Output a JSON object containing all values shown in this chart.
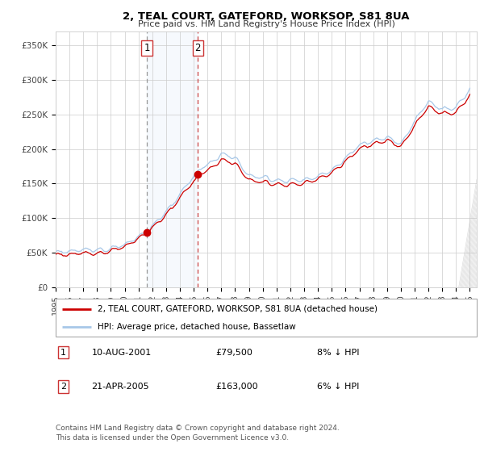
{
  "title": "2, TEAL COURT, GATEFORD, WORKSOP, S81 8UA",
  "subtitle": "Price paid vs. HM Land Registry's House Price Index (HPI)",
  "ylabel_ticks": [
    "£0",
    "£50K",
    "£100K",
    "£150K",
    "£200K",
    "£250K",
    "£300K",
    "£350K"
  ],
  "ylim": [
    0,
    370000
  ],
  "xlim_start": 1995.0,
  "xlim_end": 2025.5,
  "transaction1": {
    "date_label": "10-AUG-2001",
    "year": 2001.614,
    "price": 79500,
    "label": "1",
    "hpi_pct": "8% ↓ HPI"
  },
  "transaction2": {
    "date_label": "21-APR-2005",
    "year": 2005.3,
    "price": 163000,
    "label": "2",
    "hpi_pct": "6% ↓ HPI"
  },
  "legend_line1": "2, TEAL COURT, GATEFORD, WORKSOP, S81 8UA (detached house)",
  "legend_line2": "HPI: Average price, detached house, Bassetlaw",
  "footer": "Contains HM Land Registry data © Crown copyright and database right 2024.\nThis data is licensed under the Open Government Licence v3.0.",
  "hpi_color": "#a8c8e8",
  "price_color": "#cc0000",
  "shade_color": "#d8e8f8",
  "grid_color": "#cccccc",
  "background_color": "#ffffff",
  "tick_label_color": "#444444",
  "dashed_line1_color": "#999999",
  "dashed_line2_color": "#cc4444"
}
